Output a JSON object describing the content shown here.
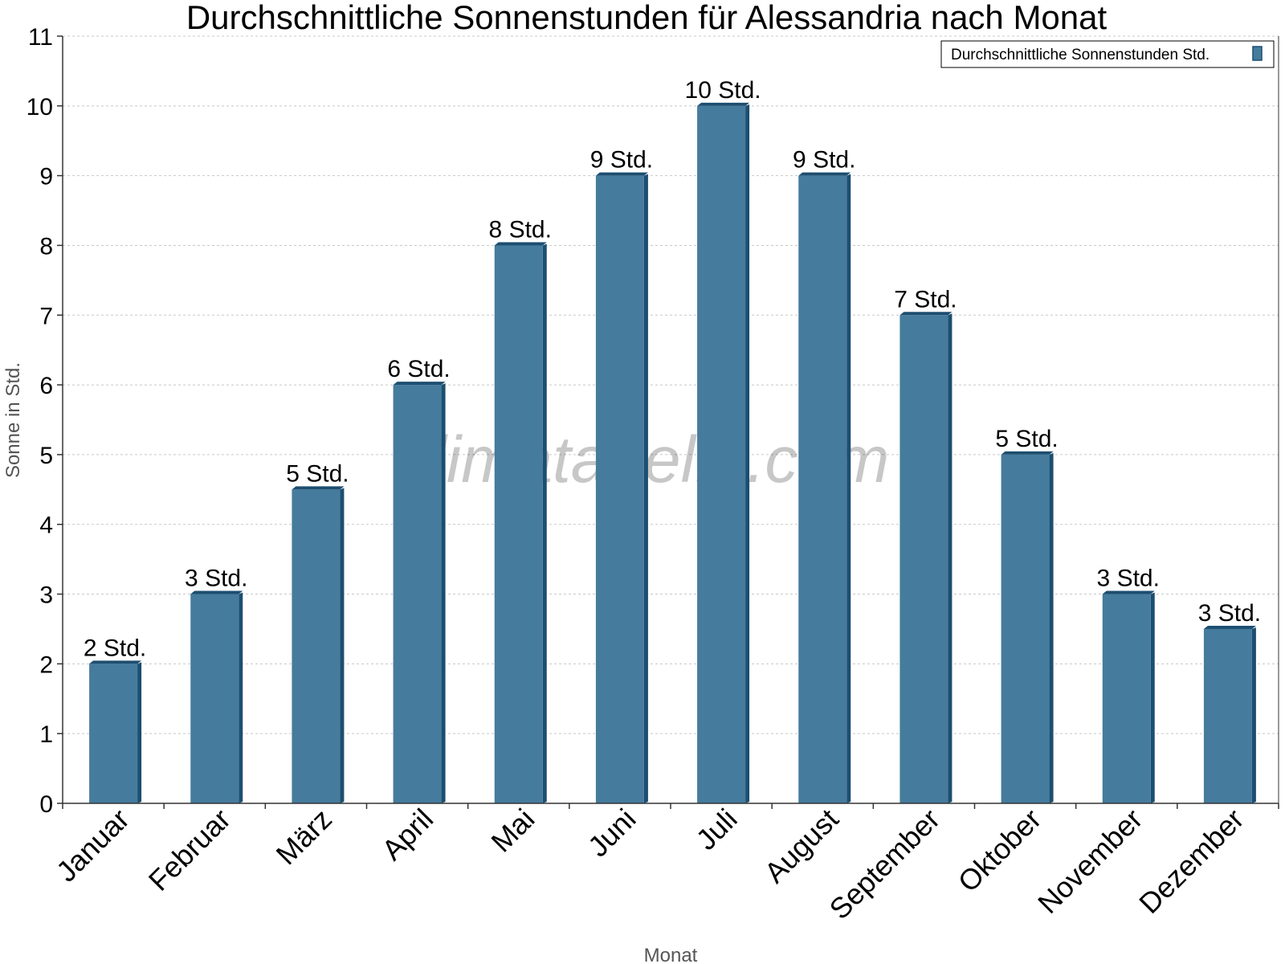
{
  "chart_data": {
    "type": "bar",
    "title": "Durchschnittliche Sonnenstunden für Alessandria nach Monat",
    "xlabel": "Monat",
    "ylabel": "Sonne in Std.",
    "ylim": [
      0,
      11
    ],
    "yticks": [
      "0",
      "1",
      "2",
      "3",
      "4",
      "5",
      "6",
      "7",
      "8",
      "9",
      "10",
      "11"
    ],
    "grid": true,
    "legend_position": "top-right",
    "categories": [
      "Januar",
      "Februar",
      "März",
      "April",
      "Mai",
      "Juni",
      "Juli",
      "August",
      "September",
      "Oktober",
      "November",
      "Dezember"
    ],
    "series": [
      {
        "name": "Durchschnittliche Sonnenstunden Std.",
        "values": [
          2,
          3,
          4.5,
          6,
          8,
          9,
          10,
          9,
          7,
          5,
          3,
          2.5
        ],
        "labels": [
          "2 Std.",
          "3 Std.",
          "5 Std.",
          "6 Std.",
          "8 Std.",
          "9 Std.",
          "10 Std.",
          "9 Std.",
          "7 Std.",
          "5 Std.",
          "3 Std.",
          "3 Std."
        ],
        "color": "#457b9d",
        "side_color": "#1d4e70"
      }
    ],
    "watermark": "klimatabelle.com"
  }
}
